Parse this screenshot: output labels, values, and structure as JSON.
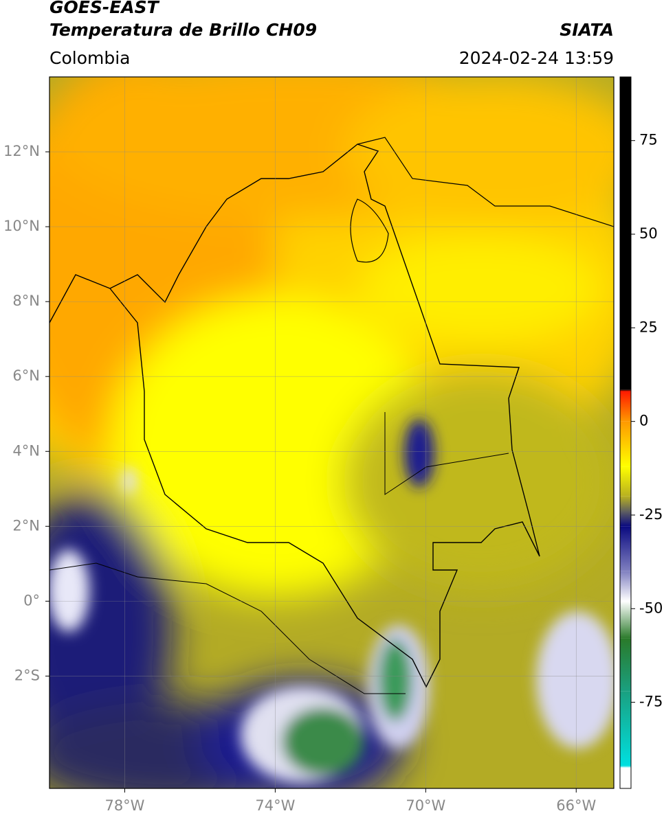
{
  "header": {
    "satellite": "GOES-EAST",
    "product": "Temperatura de Brillo CH09",
    "region": "Colombia",
    "source": "SIATA",
    "datetime": "2024-02-24 13:59"
  },
  "map": {
    "xlim": [
      -80,
      -65
    ],
    "ylim": [
      -5,
      14
    ],
    "xticks": [
      {
        "value": -78,
        "label": "78°W"
      },
      {
        "value": -74,
        "label": "74°W"
      },
      {
        "value": -70,
        "label": "70°W"
      },
      {
        "value": -66,
        "label": "66°W"
      }
    ],
    "yticks": [
      {
        "value": 12,
        "label": "12°N"
      },
      {
        "value": 10,
        "label": "10°N"
      },
      {
        "value": 8,
        "label": "8°N"
      },
      {
        "value": 6,
        "label": "6°N"
      },
      {
        "value": 4,
        "label": "4°N"
      },
      {
        "value": 2,
        "label": "2°N"
      },
      {
        "value": 0,
        "label": "0°"
      },
      {
        "value": -2,
        "label": "2°S"
      }
    ],
    "grid": true
  },
  "colorbar": {
    "lim": [
      -98,
      92
    ],
    "ticks": [
      75,
      50,
      25,
      0,
      -25,
      -50,
      -75
    ],
    "stops": [
      {
        "value": 92,
        "color": "#000000"
      },
      {
        "value": 8.5,
        "color": "#000000"
      },
      {
        "value": 8,
        "color": "#ff1a00"
      },
      {
        "value": 0,
        "color": "#ff9900"
      },
      {
        "value": -12,
        "color": "#ffff00"
      },
      {
        "value": -20,
        "color": "#b8b020"
      },
      {
        "value": -24,
        "color": "#606060"
      },
      {
        "value": -28,
        "color": "#0a0a80"
      },
      {
        "value": -40,
        "color": "#8080c0"
      },
      {
        "value": -48,
        "color": "#ffffff"
      },
      {
        "value": -58,
        "color": "#2a7a2a"
      },
      {
        "value": -72,
        "color": "#1aa080"
      },
      {
        "value": -92,
        "color": "#00e0e0"
      },
      {
        "value": -92.5,
        "color": "#ffffff"
      },
      {
        "value": -98,
        "color": "#ffffff"
      }
    ]
  }
}
